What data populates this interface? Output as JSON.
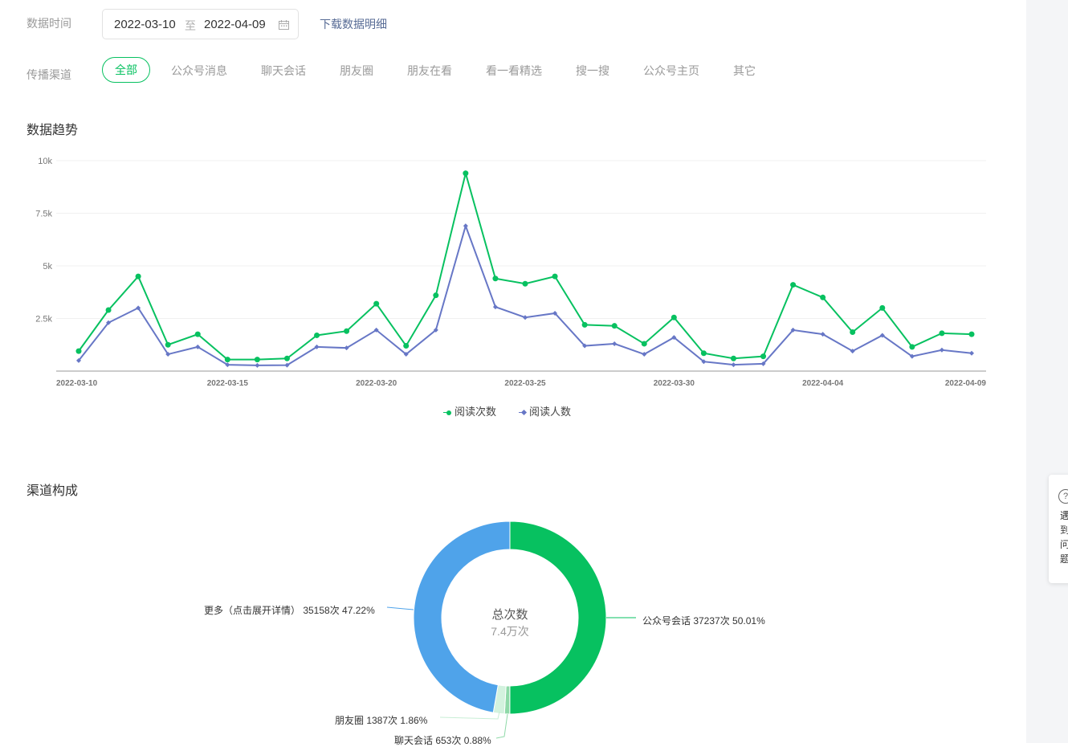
{
  "filters": {
    "time_label": "数据时间",
    "start_date": "2022-03-10",
    "separator": "至",
    "end_date": "2022-04-09",
    "download_label": "下载数据明细",
    "channel_label": "传播渠道",
    "channels": [
      "全部",
      "公众号消息",
      "聊天会话",
      "朋友圈",
      "朋友在看",
      "看一看精选",
      "搜一搜",
      "公众号主页",
      "其它"
    ],
    "active_channel_index": 0
  },
  "trend": {
    "title": "数据趋势",
    "legend": [
      "阅读次数",
      "阅读人数"
    ]
  },
  "composition": {
    "title": "渠道构成",
    "center_title": "总次数",
    "center_value": "7.4万次",
    "labels": {
      "more": "更多（点击展开详情）  35158次 47.22%",
      "gzh_chat": "公众号会话 37237次 50.01%",
      "moments": "朋友圈 1387次 1.86%",
      "chat": "聊天会话 653次 0.88%"
    }
  },
  "help": {
    "text": "遇到问题"
  },
  "colors": {
    "green": "#07c160",
    "blue": "#6777c6",
    "pie_blue": "#4fa3ea",
    "pie_light": "#d3f2de",
    "pie_mid": "#8fd9a8"
  },
  "chart_data": [
    {
      "type": "line",
      "title": "数据趋势",
      "x": [
        "2022-03-10",
        "2022-03-11",
        "2022-03-12",
        "2022-03-13",
        "2022-03-14",
        "2022-03-15",
        "2022-03-16",
        "2022-03-17",
        "2022-03-18",
        "2022-03-19",
        "2022-03-20",
        "2022-03-21",
        "2022-03-22",
        "2022-03-23",
        "2022-03-24",
        "2022-03-25",
        "2022-03-26",
        "2022-03-27",
        "2022-03-28",
        "2022-03-29",
        "2022-03-30",
        "2022-03-31",
        "2022-04-01",
        "2022-04-02",
        "2022-04-03",
        "2022-04-04",
        "2022-04-05",
        "2022-04-06",
        "2022-04-07",
        "2022-04-08",
        "2022-04-09"
      ],
      "x_ticks": [
        "2022-03-10",
        "2022-03-15",
        "2022-03-20",
        "2022-03-25",
        "2022-03-30",
        "2022-04-04",
        "2022-04-09"
      ],
      "y_ticks": [
        "2.5k",
        "5k",
        "7.5k",
        "10k"
      ],
      "ylim": [
        0,
        10000
      ],
      "series": [
        {
          "name": "阅读次数",
          "values": [
            950,
            2900,
            4500,
            1250,
            1750,
            550,
            550,
            600,
            1700,
            1900,
            3200,
            1200,
            3600,
            9400,
            4400,
            4150,
            4500,
            2200,
            2150,
            1300,
            2550,
            850,
            600,
            700,
            4100,
            3500,
            1850,
            3000,
            1150,
            1800,
            1750
          ]
        },
        {
          "name": "阅读人数",
          "values": [
            500,
            2300,
            3000,
            800,
            1150,
            300,
            270,
            280,
            1150,
            1100,
            1950,
            800,
            1950,
            6900,
            3050,
            2550,
            2750,
            1200,
            1300,
            800,
            1600,
            450,
            300,
            350,
            1950,
            1750,
            950,
            1700,
            700,
            1000,
            850
          ]
        }
      ],
      "legend": "bottom-center",
      "grid": true
    },
    {
      "type": "pie",
      "title": "渠道构成",
      "slices": [
        {
          "label": "公众号会话",
          "count": 37237,
          "percent": 50.01
        },
        {
          "label": "聊天会话",
          "count": 653,
          "percent": 0.88
        },
        {
          "label": "朋友圈",
          "count": 1387,
          "percent": 1.86
        },
        {
          "label": "更多（点击展开详情）",
          "count": 35158,
          "percent": 47.22
        }
      ],
      "donut": true
    }
  ]
}
